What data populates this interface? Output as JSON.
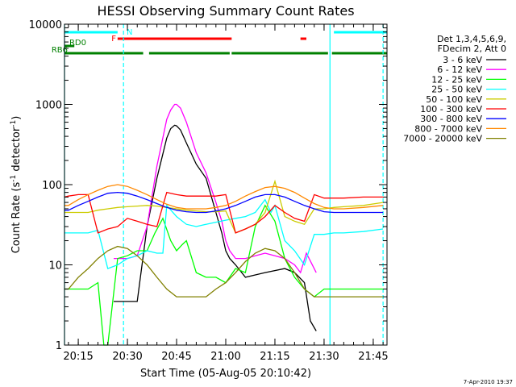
{
  "chart_data": {
    "type": "line",
    "title": "HESSI Observing Summary Count Rates",
    "xlabel": "Start Time (05-Aug-05 20:10:42)",
    "ylabel_main": "Count Rate (s",
    "ylabel_sup1": "-1",
    "ylabel_mid": " detector",
    "ylabel_sup2": "-1",
    "ylabel_end": ")",
    "yscale": "log",
    "ylim": [
      1,
      10000
    ],
    "xlim_minutes": [
      20.18,
      21.82
    ],
    "x_ticks": [
      {
        "m": 20.25,
        "label": "20:15"
      },
      {
        "m": 20.5,
        "label": "20:30"
      },
      {
        "m": 20.75,
        "label": "20:45"
      },
      {
        "m": 21.0,
        "label": "21:00"
      },
      {
        "m": 21.25,
        "label": "21:15"
      },
      {
        "m": 21.5,
        "label": "21:30"
      },
      {
        "m": 21.75,
        "label": "21:45"
      }
    ],
    "y_ticks": [
      {
        "v": 1,
        "label": "1"
      },
      {
        "v": 10,
        "label": "10"
      },
      {
        "v": 100,
        "label": "100"
      },
      {
        "v": 1000,
        "label": "1000"
      },
      {
        "v": 10000,
        "label": "10000"
      }
    ],
    "legend_title": "Det 1,3,4,5,6,9,",
    "legend_subtitle": "FDecim 2, Att 0",
    "legend_position": "right",
    "series": [
      {
        "name": "3 - 6 keV",
        "color": "#000000",
        "x": [
          20.43,
          20.48,
          20.55,
          20.6,
          20.65,
          20.7,
          20.72,
          20.74,
          20.75,
          20.77,
          20.8,
          20.85,
          20.9,
          20.95,
          20.98,
          21.0,
          21.02,
          21.05,
          21.1,
          21.2,
          21.3,
          21.35,
          21.4,
          21.43,
          21.46
        ],
        "y": [
          3.5,
          3.5,
          3.5,
          30,
          120,
          380,
          500,
          550,
          540,
          480,
          330,
          180,
          120,
          45,
          25,
          15,
          12,
          10,
          7,
          8,
          9,
          8,
          6,
          2,
          1.5
        ]
      },
      {
        "name": "6 - 12 keV",
        "color": "#ff00ff",
        "x": [
          20.43,
          20.5,
          20.55,
          20.6,
          20.65,
          20.7,
          20.72,
          20.74,
          20.75,
          20.77,
          20.8,
          20.85,
          20.9,
          20.95,
          20.98,
          21.0,
          21.02,
          21.05,
          21.1,
          21.15,
          21.2,
          21.25,
          21.3,
          21.35,
          21.38,
          21.41,
          21.46
        ],
        "y": [
          12,
          12,
          13,
          30,
          170,
          650,
          850,
          1000,
          1000,
          900,
          600,
          250,
          140,
          60,
          35,
          20,
          15,
          12,
          12,
          13,
          14,
          13,
          12,
          10,
          8,
          14,
          8
        ]
      },
      {
        "name": "12 - 25 keV",
        "color": "#00ff00",
        "x": [
          20.18,
          20.2,
          20.25,
          20.3,
          20.35,
          20.38,
          20.38,
          20.4,
          20.45,
          20.5,
          20.55,
          20.6,
          20.64,
          20.68,
          20.72,
          20.75,
          20.78,
          20.8,
          20.85,
          20.9,
          20.95,
          21.0,
          21.05,
          21.1,
          21.15,
          21.2,
          21.25,
          21.3,
          21.35,
          21.4,
          21.45,
          21.5,
          21.55,
          21.6,
          21.7,
          21.8
        ],
        "y": [
          5,
          5,
          5,
          5,
          6,
          1,
          1,
          1,
          12,
          13,
          15,
          15,
          25,
          38,
          20,
          15,
          18,
          20,
          8,
          7,
          7,
          6,
          9,
          8,
          30,
          55,
          35,
          12,
          7,
          5,
          4,
          5,
          5,
          5,
          5,
          5
        ]
      },
      {
        "name": "25 - 50 keV",
        "color": "#00ffff",
        "x": [
          20.18,
          20.2,
          20.25,
          20.3,
          20.35,
          20.4,
          20.45,
          20.5,
          20.55,
          20.6,
          20.65,
          20.68,
          20.7,
          20.75,
          20.8,
          20.85,
          20.9,
          20.95,
          21.0,
          21.05,
          21.1,
          21.15,
          21.2,
          21.23,
          21.25,
          21.28,
          21.3,
          21.35,
          21.4,
          21.45,
          21.5,
          21.55,
          21.6,
          21.7,
          21.8
        ],
        "y": [
          25,
          25,
          25,
          25,
          27,
          9,
          10,
          12,
          13,
          15,
          14,
          14,
          55,
          40,
          32,
          30,
          32,
          34,
          36,
          38,
          40,
          45,
          65,
          45,
          55,
          30,
          20,
          15,
          10,
          24,
          24,
          25,
          25,
          26,
          28
        ]
      },
      {
        "name": "50 - 100 keV",
        "color": "#cccc00",
        "x": [
          20.18,
          20.2,
          20.25,
          20.3,
          20.35,
          20.4,
          20.45,
          20.5,
          20.55,
          20.6,
          20.65,
          20.7,
          20.75,
          20.8,
          20.85,
          20.9,
          20.95,
          21.0,
          21.05,
          21.1,
          21.15,
          21.2,
          21.25,
          21.28,
          21.3,
          21.35,
          21.4,
          21.45,
          21.5,
          21.55,
          21.6,
          21.7,
          21.8
        ],
        "y": [
          45,
          45,
          45,
          45,
          48,
          50,
          52,
          53,
          54,
          55,
          54,
          52,
          50,
          48,
          47,
          46,
          46,
          47,
          25,
          28,
          32,
          45,
          110,
          60,
          40,
          35,
          32,
          50,
          50,
          52,
          53,
          55,
          60
        ]
      },
      {
        "name": "100 - 300 keV",
        "color": "#ff0000",
        "x": [
          20.18,
          20.2,
          20.25,
          20.3,
          20.35,
          20.4,
          20.45,
          20.5,
          20.55,
          20.6,
          20.65,
          20.7,
          20.75,
          20.8,
          20.85,
          20.9,
          20.95,
          21.0,
          21.05,
          21.1,
          21.15,
          21.2,
          21.25,
          21.3,
          21.35,
          21.4,
          21.45,
          21.5,
          21.55,
          21.6,
          21.7,
          21.8
        ],
        "y": [
          70,
          72,
          75,
          75,
          25,
          28,
          30,
          38,
          35,
          32,
          30,
          80,
          75,
          72,
          72,
          72,
          72,
          75,
          25,
          28,
          32,
          40,
          55,
          45,
          38,
          35,
          75,
          68,
          68,
          68,
          70,
          70
        ]
      },
      {
        "name": "300 - 800 keV",
        "color": "#0000ff",
        "x": [
          20.18,
          20.2,
          20.25,
          20.3,
          20.35,
          20.4,
          20.45,
          20.5,
          20.55,
          20.6,
          20.65,
          20.7,
          20.75,
          20.8,
          20.85,
          20.9,
          20.95,
          21.0,
          21.05,
          21.1,
          21.15,
          21.2,
          21.25,
          21.3,
          21.35,
          21.4,
          21.45,
          21.5,
          21.55,
          21.6,
          21.7,
          21.8
        ],
        "y": [
          48,
          48,
          55,
          62,
          70,
          78,
          80,
          78,
          72,
          65,
          58,
          52,
          48,
          46,
          45,
          45,
          47,
          50,
          55,
          62,
          70,
          75,
          75,
          70,
          62,
          55,
          50,
          46,
          45,
          45,
          45,
          45
        ]
      },
      {
        "name": "800 - 7000 keV",
        "color": "#ff8800",
        "x": [
          20.18,
          20.2,
          20.25,
          20.3,
          20.35,
          20.4,
          20.45,
          20.5,
          20.55,
          20.6,
          20.65,
          20.7,
          20.75,
          20.8,
          20.85,
          20.9,
          20.95,
          21.0,
          21.05,
          21.1,
          21.15,
          21.2,
          21.25,
          21.3,
          21.35,
          21.4,
          21.45,
          21.5,
          21.55,
          21.6,
          21.7,
          21.8
        ],
        "y": [
          55,
          55,
          65,
          75,
          85,
          95,
          100,
          95,
          85,
          75,
          65,
          57,
          52,
          50,
          50,
          50,
          52,
          55,
          62,
          72,
          82,
          92,
          95,
          90,
          80,
          68,
          58,
          52,
          50,
          50,
          52,
          55
        ]
      },
      {
        "name": "7000 - 20000 keV",
        "color": "#808000",
        "x": [
          20.18,
          20.2,
          20.25,
          20.3,
          20.35,
          20.4,
          20.45,
          20.5,
          20.55,
          20.6,
          20.65,
          20.7,
          20.75,
          20.8,
          20.85,
          20.9,
          20.95,
          21.0,
          21.05,
          21.1,
          21.15,
          21.2,
          21.25,
          21.3,
          21.35,
          21.4,
          21.45,
          21.5,
          21.55,
          21.6,
          21.7,
          21.8
        ],
        "y": [
          5,
          5,
          7,
          9,
          12,
          15,
          17,
          16,
          13,
          10,
          7,
          5,
          4,
          4,
          4,
          4,
          5,
          6,
          8,
          11,
          14,
          16,
          15,
          12,
          8,
          5,
          4,
          4,
          4,
          4,
          4,
          4
        ]
      }
    ],
    "status_bars": [
      {
        "label": "N",
        "color": "#00ffff",
        "segments": [
          [
            20.18,
            20.45
          ],
          [
            21.55,
            21.82
          ]
        ]
      },
      {
        "label": "F",
        "color": "#ff0000",
        "segments": [
          [
            20.45,
            21.03
          ],
          [
            21.38,
            21.41
          ]
        ]
      },
      {
        "label": "RD0",
        "color": "#008000",
        "segments": [
          [
            20.18,
            20.23
          ]
        ]
      },
      {
        "label": "RB6",
        "color": "#008000",
        "segments": [
          [
            20.18,
            20.58
          ],
          [
            20.61,
            21.02
          ],
          [
            21.03,
            21.52
          ],
          [
            21.54,
            21.82
          ]
        ]
      }
    ],
    "vertical_lines": [
      {
        "m": 20.18,
        "color": "#00ffff",
        "style": "solid"
      },
      {
        "m": 20.48,
        "color": "#00ffff",
        "style": "dashed"
      },
      {
        "m": 21.53,
        "color": "#00ffff",
        "style": "solid"
      },
      {
        "m": 21.8,
        "color": "#00ffff",
        "style": "dashed"
      }
    ]
  },
  "footer_date": "7-Apr-2010 19:37"
}
